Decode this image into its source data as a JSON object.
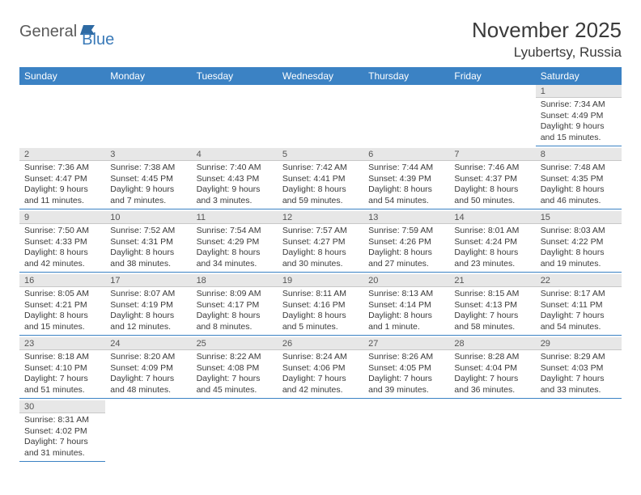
{
  "logo": {
    "part1": "General",
    "part2": "Blue"
  },
  "title": "November 2025",
  "location": "Lyubertsy, Russia",
  "colors": {
    "header_bg": "#3b82c4",
    "header_text": "#ffffff",
    "daynum_bg": "#e7e7e7",
    "text": "#3a3a3a",
    "cell_border": "#3b82c4"
  },
  "weekdays": [
    "Sunday",
    "Monday",
    "Tuesday",
    "Wednesday",
    "Thursday",
    "Friday",
    "Saturday"
  ],
  "weeks": [
    [
      null,
      null,
      null,
      null,
      null,
      null,
      {
        "n": "1",
        "sr": "Sunrise: 7:34 AM",
        "ss": "Sunset: 4:49 PM",
        "dl": "Daylight: 9 hours and 15 minutes."
      }
    ],
    [
      {
        "n": "2",
        "sr": "Sunrise: 7:36 AM",
        "ss": "Sunset: 4:47 PM",
        "dl": "Daylight: 9 hours and 11 minutes."
      },
      {
        "n": "3",
        "sr": "Sunrise: 7:38 AM",
        "ss": "Sunset: 4:45 PM",
        "dl": "Daylight: 9 hours and 7 minutes."
      },
      {
        "n": "4",
        "sr": "Sunrise: 7:40 AM",
        "ss": "Sunset: 4:43 PM",
        "dl": "Daylight: 9 hours and 3 minutes."
      },
      {
        "n": "5",
        "sr": "Sunrise: 7:42 AM",
        "ss": "Sunset: 4:41 PM",
        "dl": "Daylight: 8 hours and 59 minutes."
      },
      {
        "n": "6",
        "sr": "Sunrise: 7:44 AM",
        "ss": "Sunset: 4:39 PM",
        "dl": "Daylight: 8 hours and 54 minutes."
      },
      {
        "n": "7",
        "sr": "Sunrise: 7:46 AM",
        "ss": "Sunset: 4:37 PM",
        "dl": "Daylight: 8 hours and 50 minutes."
      },
      {
        "n": "8",
        "sr": "Sunrise: 7:48 AM",
        "ss": "Sunset: 4:35 PM",
        "dl": "Daylight: 8 hours and 46 minutes."
      }
    ],
    [
      {
        "n": "9",
        "sr": "Sunrise: 7:50 AM",
        "ss": "Sunset: 4:33 PM",
        "dl": "Daylight: 8 hours and 42 minutes."
      },
      {
        "n": "10",
        "sr": "Sunrise: 7:52 AM",
        "ss": "Sunset: 4:31 PM",
        "dl": "Daylight: 8 hours and 38 minutes."
      },
      {
        "n": "11",
        "sr": "Sunrise: 7:54 AM",
        "ss": "Sunset: 4:29 PM",
        "dl": "Daylight: 8 hours and 34 minutes."
      },
      {
        "n": "12",
        "sr": "Sunrise: 7:57 AM",
        "ss": "Sunset: 4:27 PM",
        "dl": "Daylight: 8 hours and 30 minutes."
      },
      {
        "n": "13",
        "sr": "Sunrise: 7:59 AM",
        "ss": "Sunset: 4:26 PM",
        "dl": "Daylight: 8 hours and 27 minutes."
      },
      {
        "n": "14",
        "sr": "Sunrise: 8:01 AM",
        "ss": "Sunset: 4:24 PM",
        "dl": "Daylight: 8 hours and 23 minutes."
      },
      {
        "n": "15",
        "sr": "Sunrise: 8:03 AM",
        "ss": "Sunset: 4:22 PM",
        "dl": "Daylight: 8 hours and 19 minutes."
      }
    ],
    [
      {
        "n": "16",
        "sr": "Sunrise: 8:05 AM",
        "ss": "Sunset: 4:21 PM",
        "dl": "Daylight: 8 hours and 15 minutes."
      },
      {
        "n": "17",
        "sr": "Sunrise: 8:07 AM",
        "ss": "Sunset: 4:19 PM",
        "dl": "Daylight: 8 hours and 12 minutes."
      },
      {
        "n": "18",
        "sr": "Sunrise: 8:09 AM",
        "ss": "Sunset: 4:17 PM",
        "dl": "Daylight: 8 hours and 8 minutes."
      },
      {
        "n": "19",
        "sr": "Sunrise: 8:11 AM",
        "ss": "Sunset: 4:16 PM",
        "dl": "Daylight: 8 hours and 5 minutes."
      },
      {
        "n": "20",
        "sr": "Sunrise: 8:13 AM",
        "ss": "Sunset: 4:14 PM",
        "dl": "Daylight: 8 hours and 1 minute."
      },
      {
        "n": "21",
        "sr": "Sunrise: 8:15 AM",
        "ss": "Sunset: 4:13 PM",
        "dl": "Daylight: 7 hours and 58 minutes."
      },
      {
        "n": "22",
        "sr": "Sunrise: 8:17 AM",
        "ss": "Sunset: 4:11 PM",
        "dl": "Daylight: 7 hours and 54 minutes."
      }
    ],
    [
      {
        "n": "23",
        "sr": "Sunrise: 8:18 AM",
        "ss": "Sunset: 4:10 PM",
        "dl": "Daylight: 7 hours and 51 minutes."
      },
      {
        "n": "24",
        "sr": "Sunrise: 8:20 AM",
        "ss": "Sunset: 4:09 PM",
        "dl": "Daylight: 7 hours and 48 minutes."
      },
      {
        "n": "25",
        "sr": "Sunrise: 8:22 AM",
        "ss": "Sunset: 4:08 PM",
        "dl": "Daylight: 7 hours and 45 minutes."
      },
      {
        "n": "26",
        "sr": "Sunrise: 8:24 AM",
        "ss": "Sunset: 4:06 PM",
        "dl": "Daylight: 7 hours and 42 minutes."
      },
      {
        "n": "27",
        "sr": "Sunrise: 8:26 AM",
        "ss": "Sunset: 4:05 PM",
        "dl": "Daylight: 7 hours and 39 minutes."
      },
      {
        "n": "28",
        "sr": "Sunrise: 8:28 AM",
        "ss": "Sunset: 4:04 PM",
        "dl": "Daylight: 7 hours and 36 minutes."
      },
      {
        "n": "29",
        "sr": "Sunrise: 8:29 AM",
        "ss": "Sunset: 4:03 PM",
        "dl": "Daylight: 7 hours and 33 minutes."
      }
    ],
    [
      {
        "n": "30",
        "sr": "Sunrise: 8:31 AM",
        "ss": "Sunset: 4:02 PM",
        "dl": "Daylight: 7 hours and 31 minutes."
      },
      null,
      null,
      null,
      null,
      null,
      null
    ]
  ]
}
